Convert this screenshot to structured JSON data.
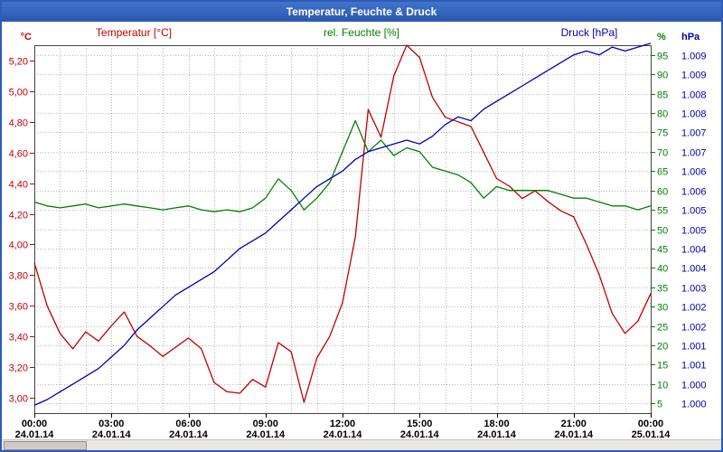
{
  "window": {
    "title": "Temperatur, Feuchte & Druck"
  },
  "chart_data": {
    "type": "line",
    "title": "Temperatur, Feuchte & Druck",
    "grid": true,
    "x_start_hour": 0,
    "x_step_hours": 0.5,
    "x_total_hours": 24,
    "x_axis": {
      "tick_hours": [
        0,
        3,
        6,
        9,
        12,
        15,
        18,
        21,
        24
      ],
      "time_labels": [
        "00:00",
        "03:00",
        "06:00",
        "09:00",
        "12:00",
        "15:00",
        "18:00",
        "21:00",
        "00:00"
      ],
      "date_labels": [
        "24.01.14",
        "24.01.14",
        "24.01.14",
        "24.01.14",
        "24.01.14",
        "24.01.14",
        "24.01.14",
        "24.01.14",
        "25.01.14"
      ],
      "grid_hours_step": 1
    },
    "axes": {
      "temp": {
        "title": "Temperatur [°C]",
        "unit": "°C",
        "color": "#c00000",
        "min": 2.9,
        "max": 5.3,
        "tick_values": [
          3.0,
          3.2,
          3.4,
          3.6,
          3.8,
          4.0,
          4.2,
          4.4,
          4.6,
          4.8,
          5.0,
          5.2
        ],
        "tick_labels": [
          "3,00",
          "3,20",
          "3,40",
          "3,60",
          "3,80",
          "4,00",
          "4,20",
          "4,40",
          "4,60",
          "4,80",
          "5,00",
          "5,20"
        ]
      },
      "hum": {
        "title": "rel. Feuchte [%]",
        "unit": "%",
        "color": "#008000",
        "min": 2.5,
        "max": 97.5,
        "tick_values": [
          5,
          10,
          15,
          20,
          25,
          30,
          35,
          40,
          45,
          50,
          55,
          60,
          65,
          70,
          75,
          80,
          85,
          90,
          95
        ],
        "tick_labels": [
          "5",
          "10",
          "15",
          "20",
          "25",
          "30",
          "35",
          "40",
          "45",
          "50",
          "55",
          "60",
          "65",
          "70",
          "75",
          "80",
          "85",
          "90",
          "95"
        ]
      },
      "pres": {
        "title": "Druck [hPa]",
        "unit": "hPa",
        "color": "#0000b0",
        "min": 999.75,
        "max": 1009.25,
        "tick_labels_top_to_bottom": [
          "1.009",
          "1.009",
          "1.008",
          "1.008",
          "1.007",
          "1.007",
          "1.006",
          "1.006",
          "1.005",
          "1.005",
          "1.004",
          "1.004",
          "1.003",
          "1.002",
          "1.002",
          "1.001",
          "1.001",
          "1.000",
          "1.000"
        ]
      }
    },
    "series": [
      {
        "name": "Temperatur [°C]",
        "axis": "temp",
        "color": "#c00000",
        "values": [
          3.88,
          3.6,
          3.42,
          3.32,
          3.43,
          3.37,
          3.47,
          3.56,
          3.4,
          3.34,
          3.27,
          3.33,
          3.39,
          3.32,
          3.1,
          3.04,
          3.03,
          3.12,
          3.07,
          3.36,
          3.3,
          2.97,
          3.26,
          3.4,
          3.62,
          4.05,
          4.88,
          4.7,
          5.1,
          5.3,
          5.22,
          4.96,
          4.83,
          4.8,
          4.77,
          4.6,
          4.43,
          4.38,
          4.3,
          4.35,
          4.28,
          4.22,
          4.18,
          4.0,
          3.8,
          3.55,
          3.42,
          3.5,
          3.68
        ]
      },
      {
        "name": "rel. Feuchte [%]",
        "axis": "hum",
        "color": "#008000",
        "values": [
          57,
          56,
          55.5,
          56,
          56.5,
          55.5,
          56,
          56.5,
          56,
          55.5,
          55,
          55.5,
          56,
          55,
          54.5,
          55,
          54.5,
          55.5,
          58,
          63,
          60,
          55,
          58,
          62,
          70,
          78,
          70,
          73,
          69,
          71,
          70,
          66,
          65,
          64,
          62,
          58,
          61,
          60,
          60,
          60,
          60,
          59,
          58,
          58,
          57,
          56,
          56,
          55,
          56
        ]
      },
      {
        "name": "Druck [hPa]",
        "axis": "pres",
        "color": "#0000b0",
        "values": [
          999.95,
          1000.1,
          1000.3,
          1000.5,
          1000.7,
          1000.9,
          1001.2,
          1001.5,
          1001.9,
          1002.2,
          1002.5,
          1002.8,
          1003.0,
          1003.2,
          1003.4,
          1003.7,
          1004.0,
          1004.2,
          1004.4,
          1004.7,
          1005.0,
          1005.3,
          1005.6,
          1005.8,
          1006.0,
          1006.3,
          1006.5,
          1006.6,
          1006.7,
          1006.8,
          1006.7,
          1006.9,
          1007.2,
          1007.4,
          1007.3,
          1007.6,
          1007.8,
          1008.0,
          1008.2,
          1008.4,
          1008.6,
          1008.8,
          1009.0,
          1009.1,
          1009.0,
          1009.2,
          1009.1,
          1009.2,
          1009.3
        ]
      }
    ]
  }
}
